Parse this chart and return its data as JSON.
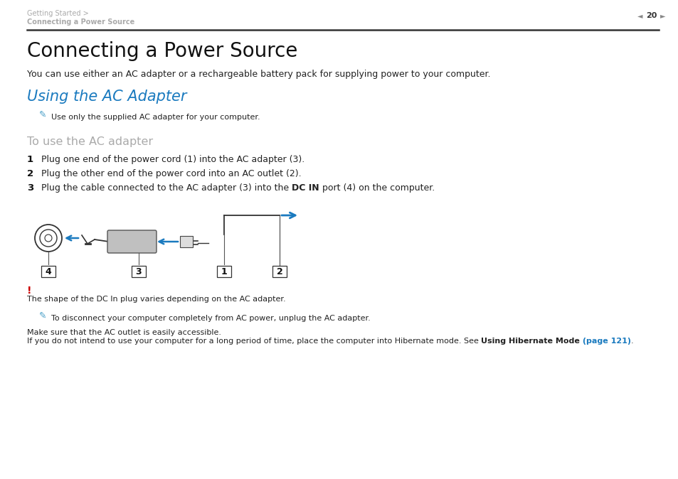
{
  "bg_color": "#ffffff",
  "header_text_line1": "Getting Started >",
  "header_text_line2": "Connecting a Power Source",
  "header_page": "20",
  "header_color": "#aaaaaa",
  "title": "Connecting a Power Source",
  "subtitle": "You can use either an AC adapter or a rechargeable battery pack for supplying power to your computer.",
  "section_heading": "Using the AC Adapter",
  "section_heading_color": "#1a7abf",
  "note_icon_color": "#4aa0c8",
  "note_text": "Use only the supplied AC adapter for your computer.",
  "procedure_heading": "To use the AC adapter",
  "procedure_heading_color": "#aaaaaa",
  "step1": "Plug one end of the power cord (1) into the AC adapter (3).",
  "step2": "Plug the other end of the power cord into an AC outlet (2).",
  "step3_pre": "Plug the cable connected to the AC adapter (3) into the ",
  "step3_bold": "DC IN",
  "step3_post": " port (4) on the computer.",
  "warning_color": "#cc0000",
  "warning_text": "The shape of the DC In plug varies depending on the AC adapter.",
  "note2_text1": "To disconnect your computer completely from AC power, unplug the AC adapter.",
  "note2_text2": "Make sure that the AC outlet is easily accessible.",
  "note3_pre": "If you do not intend to use your computer for a long period of time, place the computer into Hibernate mode. See ",
  "note3_bold": "Using Hibernate Mode",
  "note3_link": " (page 121)",
  "note3_end": ".",
  "link_color": "#1a7abf",
  "arrow_color": "#1a7abf",
  "text_color": "#222222",
  "diagram_gray": "#aaaaaa",
  "diagram_dark": "#555555"
}
